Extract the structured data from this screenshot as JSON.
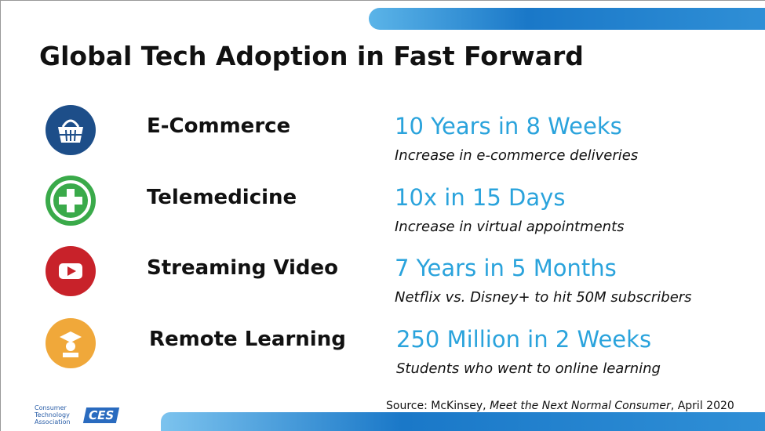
{
  "title": "Global Tech Adoption in Fast Forward",
  "rows": [
    {
      "category": "E-Commerce",
      "headline": "10 Years in 8 Weeks",
      "description": "Increase in e-commerce deliveries"
    },
    {
      "category": "Telemedicine",
      "headline": "10x in 15 Days",
      "description": "Increase in virtual appointments"
    },
    {
      "category": "Streaming Video",
      "headline": "7 Years in 5 Months",
      "description": "Netflix vs. Disney+ to hit 50M subscribers"
    },
    {
      "category": "Remote Learning",
      "headline": "250 Million in 2 Weeks",
      "description": "Students who went to online learning"
    }
  ],
  "source": {
    "prefix": "Source: McKinsey, ",
    "work": "Meet the Next Normal Consumer",
    "suffix": ", April 2020"
  },
  "logo": {
    "org": [
      "Consumer",
      "Technology",
      "Association"
    ],
    "brand": "CES"
  }
}
